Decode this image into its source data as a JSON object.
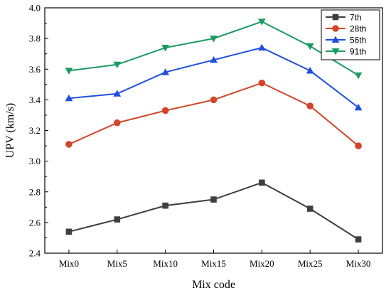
{
  "chart_data": {
    "type": "line",
    "categories": [
      "Mix0",
      "Mix5",
      "Mix10",
      "Mix15",
      "Mix20",
      "Mix25",
      "Mix30"
    ],
    "series": [
      {
        "name": "7th",
        "color": "#3f3f3f",
        "marker": "square",
        "values": [
          2.54,
          2.62,
          2.71,
          2.75,
          2.86,
          2.69,
          2.49
        ]
      },
      {
        "name": "28th",
        "color": "#d2462b",
        "marker": "circle",
        "values": [
          3.11,
          3.25,
          3.33,
          3.4,
          3.51,
          3.36,
          3.1
        ]
      },
      {
        "name": "56th",
        "color": "#1f4fe0",
        "marker": "triangle-up",
        "values": [
          3.41,
          3.44,
          3.58,
          3.66,
          3.74,
          3.59,
          3.35
        ]
      },
      {
        "name": "91th",
        "color": "#1a9a62",
        "marker": "triangle-down",
        "values": [
          3.59,
          3.63,
          3.74,
          3.8,
          3.91,
          3.75,
          3.56
        ]
      }
    ],
    "xlabel": "Mix code",
    "ylabel": "UPV (km/s)",
    "ylim": [
      2.4,
      4.0
    ],
    "yticks": [
      "2.4",
      "2.6",
      "2.8",
      "3.0",
      "3.2",
      "3.4",
      "3.6",
      "3.8",
      "4.0"
    ],
    "grid": false,
    "legend_position": "top-right"
  }
}
